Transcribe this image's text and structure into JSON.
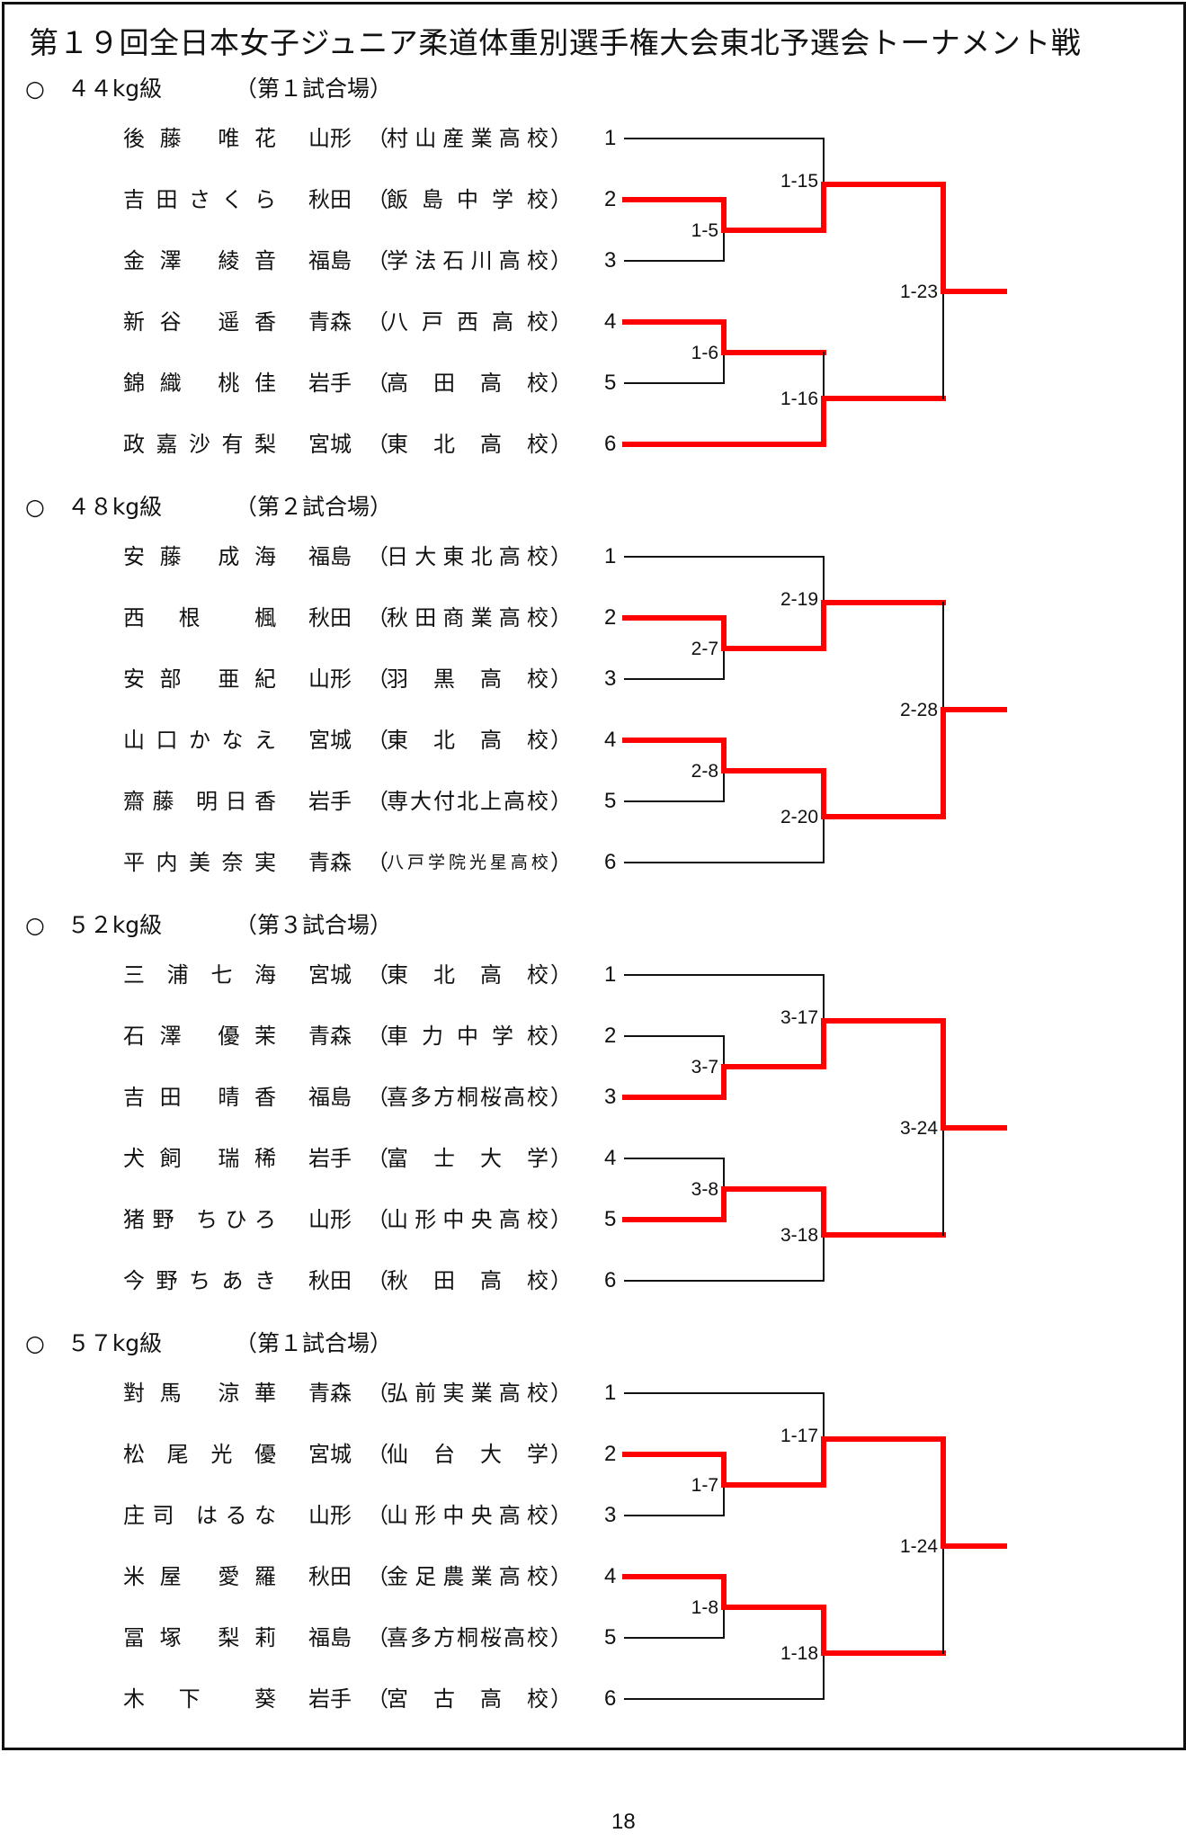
{
  "title": "第１９回全日本女子ジュニア柔道体重別選手権大会東北予選会トーナメント戦",
  "colors": {
    "winner_line": "#ff0000",
    "line": "#111111"
  },
  "sections": [
    {
      "header": "○　４４kg級",
      "venue": "（第１試合場）",
      "entries": [
        {
          "seed": "1",
          "name": "後藤　唯花",
          "pref": "山形",
          "school": "村山産業高校"
        },
        {
          "seed": "2",
          "name": "吉田さくら",
          "pref": "秋田",
          "school": "飯島中学校"
        },
        {
          "seed": "3",
          "name": "金澤　綾音",
          "pref": "福島",
          "school": "学法石川高校"
        },
        {
          "seed": "4",
          "name": "新谷　遥香",
          "pref": "青森",
          "school": "八戸西高校"
        },
        {
          "seed": "5",
          "name": "錦織　桃佳",
          "pref": "岩手",
          "school": "高田高校"
        },
        {
          "seed": "6",
          "name": "政嘉沙有梨",
          "pref": "宮城",
          "school": "東北高校"
        }
      ],
      "matches": {
        "r1_top": {
          "label": "1-5",
          "winner": 2
        },
        "r1_bottom": {
          "label": "1-6",
          "winner": 4
        },
        "semi_top": {
          "label": "1-15",
          "winner": 2
        },
        "semi_bottom": {
          "label": "1-16",
          "winner": 6
        },
        "final": {
          "label": "1-23",
          "winner": 2
        }
      }
    },
    {
      "header": "○　４８kg級",
      "venue": "（第２試合場）",
      "entries": [
        {
          "seed": "1",
          "name": "安藤　成海",
          "pref": "福島",
          "school": "日大東北高校"
        },
        {
          "seed": "2",
          "name": "西　根　　楓",
          "pref": "秋田",
          "school": "秋田商業高校"
        },
        {
          "seed": "3",
          "name": "安部　亜紀",
          "pref": "山形",
          "school": "羽黒高校"
        },
        {
          "seed": "4",
          "name": "山口かなえ",
          "pref": "宮城",
          "school": "東北高校"
        },
        {
          "seed": "5",
          "name": "齋藤　明日香",
          "pref": "岩手",
          "school": "専大付北上高校"
        },
        {
          "seed": "6",
          "name": "平内美奈実",
          "pref": "青森",
          "school": "八戸学院光星高校"
        }
      ],
      "matches": {
        "r1_top": {
          "label": "2-7",
          "winner": 2
        },
        "r1_bottom": {
          "label": "2-8",
          "winner": 4
        },
        "semi_top": {
          "label": "2-19",
          "winner": 2
        },
        "semi_bottom": {
          "label": "2-20",
          "winner": 4
        },
        "final": {
          "label": "2-28",
          "winner": 4
        }
      }
    },
    {
      "header": "○　５２kg級",
      "venue": "（第３試合場）",
      "entries": [
        {
          "seed": "1",
          "name": "三浦七海",
          "pref": "宮城",
          "school": "東北高校"
        },
        {
          "seed": "2",
          "name": "石澤　優茉",
          "pref": "青森",
          "school": "車力中学校"
        },
        {
          "seed": "3",
          "name": "吉田　晴香",
          "pref": "福島",
          "school": "喜多方桐桜高校"
        },
        {
          "seed": "4",
          "name": "犬飼　瑞稀",
          "pref": "岩手",
          "school": "富士大学"
        },
        {
          "seed": "5",
          "name": "猪野　ちひろ",
          "pref": "山形",
          "school": "山形中央高校"
        },
        {
          "seed": "6",
          "name": "今野ちあき",
          "pref": "秋田",
          "school": "秋田高校"
        }
      ],
      "matches": {
        "r1_top": {
          "label": "3-7",
          "winner": 3
        },
        "r1_bottom": {
          "label": "3-8",
          "winner": 5
        },
        "semi_top": {
          "label": "3-17",
          "winner": 3
        },
        "semi_bottom": {
          "label": "3-18",
          "winner": 5
        },
        "final": {
          "label": "3-24",
          "winner": 3
        }
      }
    },
    {
      "header": "○　５７kg級",
      "venue": "（第１試合場）",
      "entries": [
        {
          "seed": "1",
          "name": "對馬　涼華",
          "pref": "青森",
          "school": "弘前実業高校"
        },
        {
          "seed": "2",
          "name": "松尾光優",
          "pref": "宮城",
          "school": "仙台大学"
        },
        {
          "seed": "3",
          "name": "庄司　はるな",
          "pref": "山形",
          "school": "山形中央高校"
        },
        {
          "seed": "4",
          "name": "米屋　愛羅",
          "pref": "秋田",
          "school": "金足農業高校"
        },
        {
          "seed": "5",
          "name": "冨塚　梨莉",
          "pref": "福島",
          "school": "喜多方桐桜高校"
        },
        {
          "seed": "6",
          "name": "木　下　　葵",
          "pref": "岩手",
          "school": "宮古高校"
        }
      ],
      "matches": {
        "r1_top": {
          "label": "1-7",
          "winner": 2
        },
        "r1_bottom": {
          "label": "1-8",
          "winner": 4
        },
        "semi_top": {
          "label": "1-17",
          "winner": 2
        },
        "semi_bottom": {
          "label": "1-18",
          "winner": 4
        },
        "final": {
          "label": "1-24",
          "winner": 2
        }
      }
    }
  ],
  "paren_open": "（",
  "paren_close": "）",
  "page_number": "18"
}
